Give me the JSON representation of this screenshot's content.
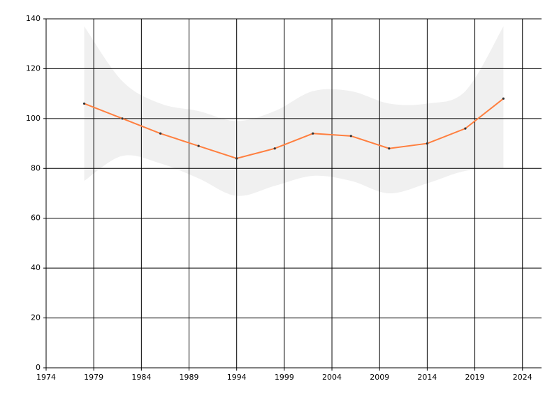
{
  "chart_data": {
    "type": "line",
    "x": [
      1978,
      1982,
      1986,
      1990,
      1994,
      1998,
      2002,
      2006,
      2010,
      2014,
      2018,
      2022
    ],
    "series": [
      {
        "color": "#ff7f3f",
        "values": [
          106,
          100,
          94,
          89,
          84,
          88,
          94,
          93,
          88,
          90,
          96,
          108
        ]
      }
    ],
    "band": {
      "color": "#f0f0f0",
      "upper": [
        137,
        115,
        106,
        103,
        99,
        103,
        111,
        111,
        106,
        106,
        111,
        137
      ],
      "lower": [
        75,
        85,
        82,
        76,
        69,
        73,
        77,
        75,
        70,
        74,
        79,
        80
      ]
    },
    "xlim": [
      1974,
      2026
    ],
    "xticks": [
      1974,
      1979,
      1984,
      1989,
      1994,
      1999,
      2004,
      2009,
      2014,
      2019,
      2024
    ],
    "ylim": [
      0,
      140
    ],
    "yticks": [
      0,
      20,
      40,
      60,
      80,
      100,
      120,
      140
    ],
    "grid": true
  }
}
